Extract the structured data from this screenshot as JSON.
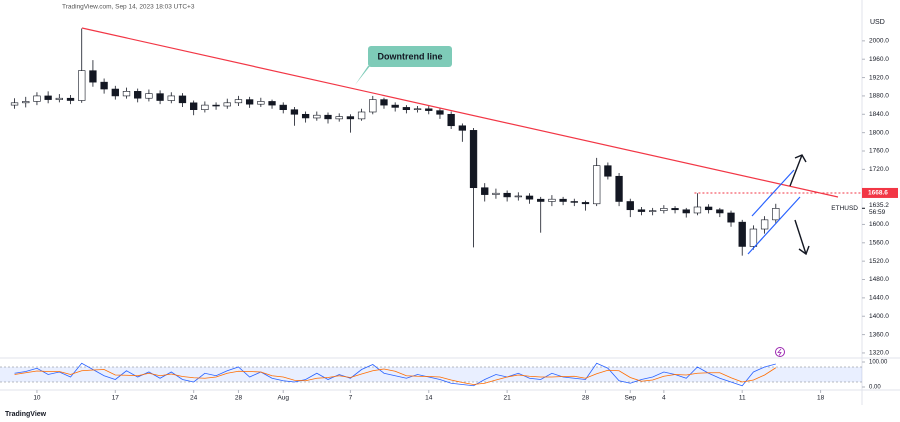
{
  "chart_data": {
    "type": "candlestick",
    "header": "TradingView.com, Sep 14, 2023 18:03 UTC+3",
    "brand": "TradingView",
    "currency": "USD",
    "symbol": "ETHUSD",
    "countdown": "56:59",
    "annotation": "Downtrend line",
    "last_price": {
      "value": 1635.2,
      "label": "1635.2"
    },
    "price_line": 1668.6,
    "xlim": [
      -3.3,
      73.7
    ],
    "ylim": [
      1309,
      2089
    ],
    "grid": false,
    "up_color": "#ffffff",
    "down_color": "#131722",
    "wick_color": "#131722",
    "xticks": [
      {
        "value": 0,
        "label": "10"
      },
      {
        "value": 7,
        "label": "17"
      },
      {
        "value": 14,
        "label": "24"
      },
      {
        "value": 18,
        "label": "28"
      },
      {
        "value": 22,
        "label": "Aug"
      },
      {
        "value": 28,
        "label": "7"
      },
      {
        "value": 35,
        "label": "14"
      },
      {
        "value": 42,
        "label": "21"
      },
      {
        "value": 49,
        "label": "28"
      },
      {
        "value": 53,
        "label": "Sep"
      },
      {
        "value": 56,
        "label": "4"
      },
      {
        "value": 63,
        "label": "11"
      },
      {
        "value": 70,
        "label": "18"
      }
    ],
    "yticks": [
      {
        "value": 2000,
        "label": "2000.0"
      },
      {
        "value": 1960,
        "label": "1960.0"
      },
      {
        "value": 1920,
        "label": "1920.0"
      },
      {
        "value": 1880,
        "label": "1880.0"
      },
      {
        "value": 1840,
        "label": "1840.0"
      },
      {
        "value": 1800,
        "label": "1800.0"
      },
      {
        "value": 1760,
        "label": "1760.0"
      },
      {
        "value": 1720,
        "label": "1720.0"
      },
      {
        "value": 1600,
        "label": "1600.0"
      },
      {
        "value": 1560,
        "label": "1560.0"
      },
      {
        "value": 1520,
        "label": "1520.0"
      },
      {
        "value": 1480,
        "label": "1480.0"
      },
      {
        "value": 1440,
        "label": "1440.0"
      },
      {
        "value": 1400,
        "label": "1400.0"
      },
      {
        "value": 1360,
        "label": "1360.0"
      },
      {
        "value": 1320,
        "label": "1320.0"
      }
    ],
    "x": [
      -2,
      -1,
      0,
      1,
      2,
      3,
      4,
      5,
      6,
      7,
      8,
      9,
      10,
      11,
      12,
      13,
      14,
      15,
      16,
      17,
      18,
      19,
      20,
      21,
      22,
      23,
      24,
      25,
      26,
      27,
      28,
      29,
      30,
      31,
      32,
      33,
      34,
      35,
      36,
      37,
      38,
      39,
      40,
      41,
      42,
      43,
      44,
      45,
      46,
      47,
      48,
      49,
      50,
      51,
      52,
      53,
      54,
      55,
      56,
      57,
      58,
      59,
      60,
      61,
      62,
      63,
      64,
      65,
      66
    ],
    "open": [
      1860,
      1865,
      1868,
      1880,
      1872,
      1875,
      1870,
      1935,
      1910,
      1895,
      1880,
      1890,
      1875,
      1885,
      1870,
      1880,
      1865,
      1850,
      1860,
      1858,
      1865,
      1872,
      1862,
      1868,
      1860,
      1850,
      1840,
      1832,
      1838,
      1830,
      1835,
      1830,
      1845,
      1872,
      1860,
      1855,
      1850,
      1852,
      1848,
      1840,
      1815,
      1805,
      1680,
      1665,
      1668,
      1660,
      1662,
      1655,
      1650,
      1655,
      1650,
      1648,
      1645,
      1728,
      1705,
      1650,
      1632,
      1628,
      1630,
      1635,
      1632,
      1625,
      1638,
      1632,
      1625,
      1605,
      1552,
      1590,
      1610
    ],
    "high": [
      1875,
      1878,
      1888,
      1890,
      1884,
      1882,
      2027,
      1958,
      1918,
      1902,
      1898,
      1896,
      1894,
      1892,
      1888,
      1886,
      1870,
      1868,
      1866,
      1874,
      1880,
      1878,
      1876,
      1872,
      1866,
      1856,
      1846,
      1846,
      1844,
      1842,
      1840,
      1852,
      1880,
      1876,
      1866,
      1860,
      1858,
      1860,
      1854,
      1846,
      1820,
      1810,
      1690,
      1678,
      1674,
      1670,
      1668,
      1660,
      1664,
      1660,
      1656,
      1652,
      1745,
      1735,
      1712,
      1656,
      1638,
      1636,
      1642,
      1640,
      1636,
      1668,
      1644,
      1636,
      1630,
      1610,
      1598,
      1618,
      1645
    ],
    "low": [
      1852,
      1855,
      1860,
      1864,
      1866,
      1862,
      1865,
      1900,
      1885,
      1872,
      1874,
      1866,
      1868,
      1862,
      1864,
      1856,
      1838,
      1844,
      1850,
      1852,
      1858,
      1854,
      1856,
      1852,
      1842,
      1815,
      1822,
      1826,
      1820,
      1824,
      1800,
      1826,
      1840,
      1852,
      1846,
      1842,
      1844,
      1840,
      1830,
      1808,
      1780,
      1550,
      1650,
      1656,
      1650,
      1652,
      1645,
      1582,
      1640,
      1642,
      1640,
      1630,
      1640,
      1698,
      1640,
      1616,
      1620,
      1620,
      1624,
      1624,
      1615,
      1620,
      1624,
      1616,
      1595,
      1532,
      1545,
      1580,
      1602
    ],
    "close": [
      1865,
      1868,
      1880,
      1872,
      1875,
      1870,
      1935,
      1910,
      1895,
      1880,
      1890,
      1875,
      1885,
      1870,
      1880,
      1865,
      1850,
      1860,
      1858,
      1865,
      1872,
      1862,
      1868,
      1860,
      1850,
      1840,
      1832,
      1838,
      1830,
      1835,
      1830,
      1845,
      1872,
      1860,
      1855,
      1850,
      1852,
      1848,
      1840,
      1815,
      1805,
      1680,
      1665,
      1668,
      1660,
      1662,
      1655,
      1650,
      1655,
      1650,
      1648,
      1645,
      1728,
      1705,
      1650,
      1632,
      1628,
      1630,
      1635,
      1632,
      1625,
      1638,
      1632,
      1625,
      1605,
      1552,
      1590,
      1610,
      1635
    ],
    "oscillator": {
      "ylim": [
        -12,
        116
      ],
      "yticks": [
        {
          "value": 100,
          "label": "100.00"
        },
        {
          "value": 0,
          "label": "0.00"
        }
      ],
      "band": [
        20,
        80
      ],
      "series": [
        {
          "color": "#2962ff",
          "values": [
            55,
            62,
            75,
            50,
            60,
            40,
            95,
            70,
            45,
            30,
            65,
            40,
            60,
            35,
            60,
            30,
            20,
            55,
            45,
            65,
            80,
            40,
            60,
            35,
            25,
            20,
            30,
            55,
            30,
            50,
            35,
            70,
            90,
            55,
            45,
            35,
            50,
            40,
            30,
            15,
            10,
            5,
            30,
            50,
            40,
            55,
            35,
            30,
            55,
            40,
            35,
            30,
            95,
            75,
            25,
            15,
            30,
            40,
            60,
            50,
            35,
            80,
            55,
            35,
            20,
            5,
            60,
            80,
            92
          ]
        },
        {
          "color": "#ff6d00",
          "values": [
            50,
            57,
            64,
            62,
            62,
            50,
            65,
            68,
            70,
            48,
            47,
            45,
            55,
            45,
            52,
            42,
            37,
            35,
            40,
            55,
            63,
            62,
            60,
            45,
            40,
            27,
            25,
            35,
            38,
            45,
            38,
            52,
            65,
            72,
            63,
            45,
            43,
            42,
            40,
            28,
            18,
            10,
            15,
            28,
            40,
            48,
            43,
            40,
            40,
            42,
            43,
            35,
            53,
            67,
            65,
            38,
            23,
            28,
            43,
            50,
            48,
            55,
            57,
            57,
            37,
            20,
            28,
            48,
            77
          ]
        }
      ]
    }
  }
}
